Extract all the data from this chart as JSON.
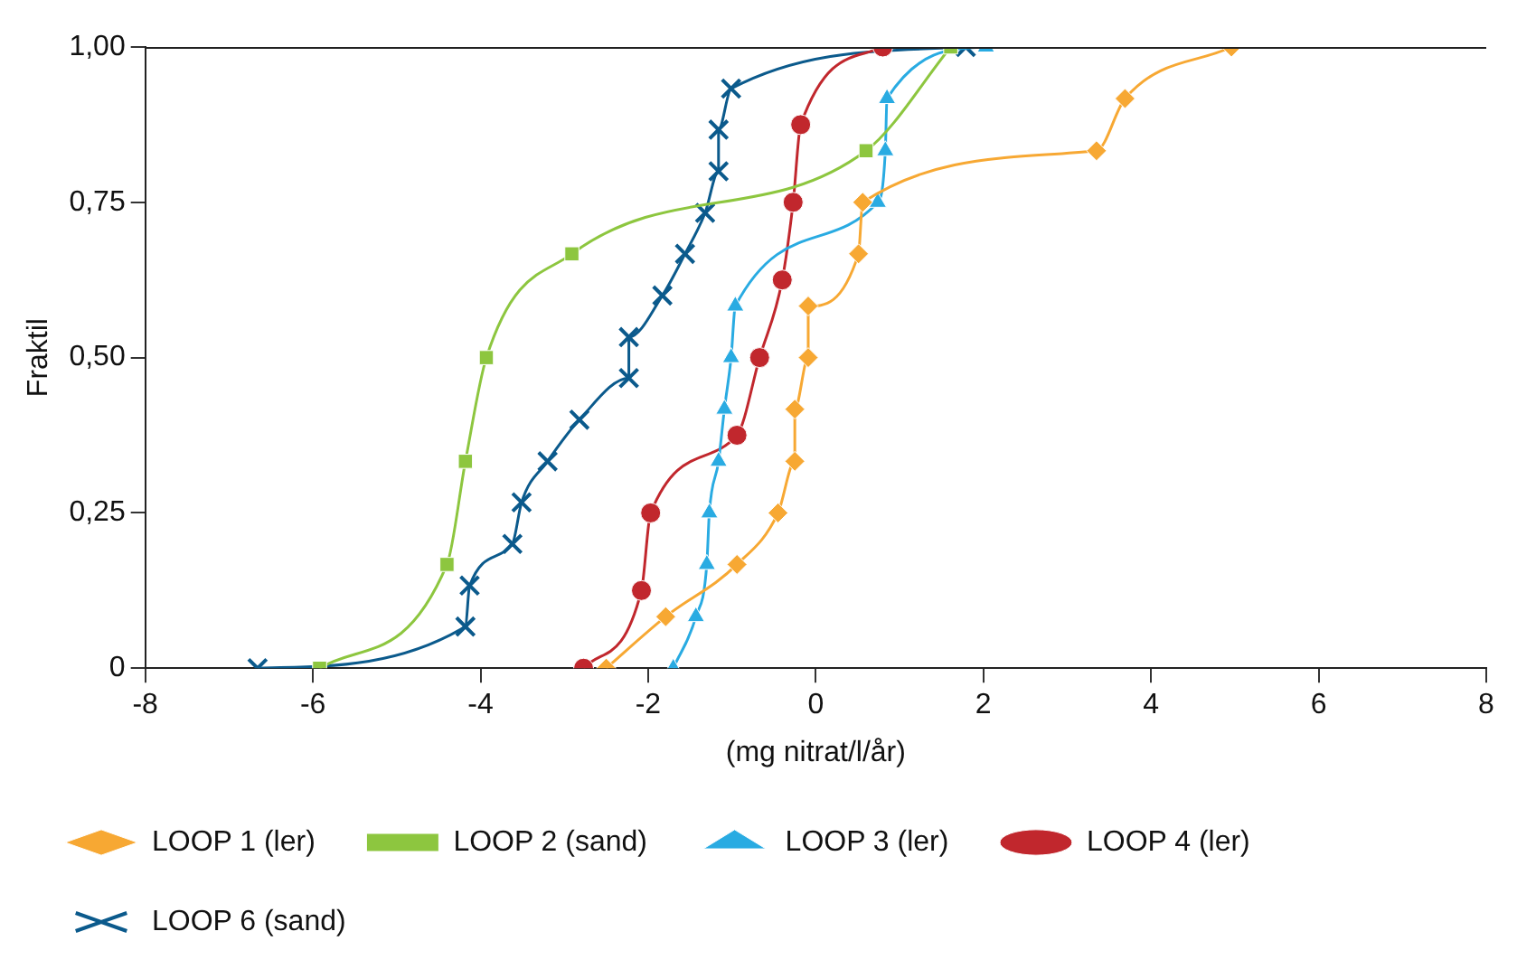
{
  "chart_data": {
    "type": "line",
    "xlabel": "(mg nitrat/l/år)",
    "ylabel": "Fraktil",
    "xlim": [
      -8,
      8
    ],
    "xticks": [
      -8,
      -6,
      -4,
      -2,
      0,
      2,
      4,
      6,
      8
    ],
    "ylim": [
      0,
      1
    ],
    "yticks": [
      {
        "value": 0,
        "label": "0"
      },
      {
        "value": 0.25,
        "label": "0,25"
      },
      {
        "value": 0.5,
        "label": "0,50"
      },
      {
        "value": 0.75,
        "label": "0,75"
      },
      {
        "value": 1,
        "label": "1,00"
      }
    ],
    "grid": false,
    "legend": "bottom",
    "line_style": "solid",
    "series": [
      {
        "name": "LOOP 1 (ler)",
        "color": "#f7a833",
        "marker": "diamond",
        "x": [
          -2.5,
          -1.79,
          -0.94,
          -0.45,
          -0.25,
          -0.25,
          -0.09,
          -0.09,
          0.51,
          0.56,
          3.35,
          3.69,
          4.96
        ],
        "values": [
          0,
          0.083,
          0.167,
          0.25,
          0.333,
          0.417,
          0.5,
          0.583,
          0.667,
          0.75,
          0.833,
          0.917,
          1
        ]
      },
      {
        "name": "LOOP 2 (sand)",
        "color": "#8dc63f",
        "marker": "square",
        "x": [
          -5.92,
          -4.4,
          -4.18,
          -3.93,
          -2.91,
          0.6,
          1.61
        ],
        "values": [
          0,
          0.167,
          0.333,
          0.5,
          0.667,
          0.833,
          1
        ]
      },
      {
        "name": "LOOP 3 (ler)",
        "color": "#29abe2",
        "marker": "triangle",
        "x": [
          -1.7,
          -1.43,
          -1.3,
          -1.27,
          -1.16,
          -1.09,
          -1.01,
          -0.96,
          0.74,
          0.83,
          0.85,
          2.03
        ],
        "values": [
          0,
          0.083,
          0.167,
          0.25,
          0.333,
          0.417,
          0.5,
          0.583,
          0.75,
          0.833,
          0.917,
          1
        ]
      },
      {
        "name": "LOOP 4 (ler)",
        "color": "#c1272d",
        "marker": "circle",
        "x": [
          -2.77,
          -2.08,
          -1.97,
          -0.94,
          -0.67,
          -0.4,
          -0.27,
          -0.18,
          0.8
        ],
        "values": [
          0,
          0.125,
          0.25,
          0.375,
          0.5,
          0.625,
          0.75,
          0.875,
          1
        ]
      },
      {
        "name": "LOOP 6 (sand)",
        "color": "#0b5a8c",
        "marker": "cross",
        "x": [
          -6.66,
          -4.18,
          -4.13,
          -3.62,
          -3.51,
          -3.2,
          -2.82,
          -2.23,
          -2.23,
          -1.83,
          -1.56,
          -1.32,
          -1.16,
          -1.16,
          -1.01,
          1.79
        ],
        "values": [
          0,
          0.067,
          0.133,
          0.2,
          0.267,
          0.333,
          0.4,
          0.467,
          0.533,
          0.6,
          0.667,
          0.733,
          0.8,
          0.867,
          0.933,
          1
        ]
      }
    ]
  }
}
